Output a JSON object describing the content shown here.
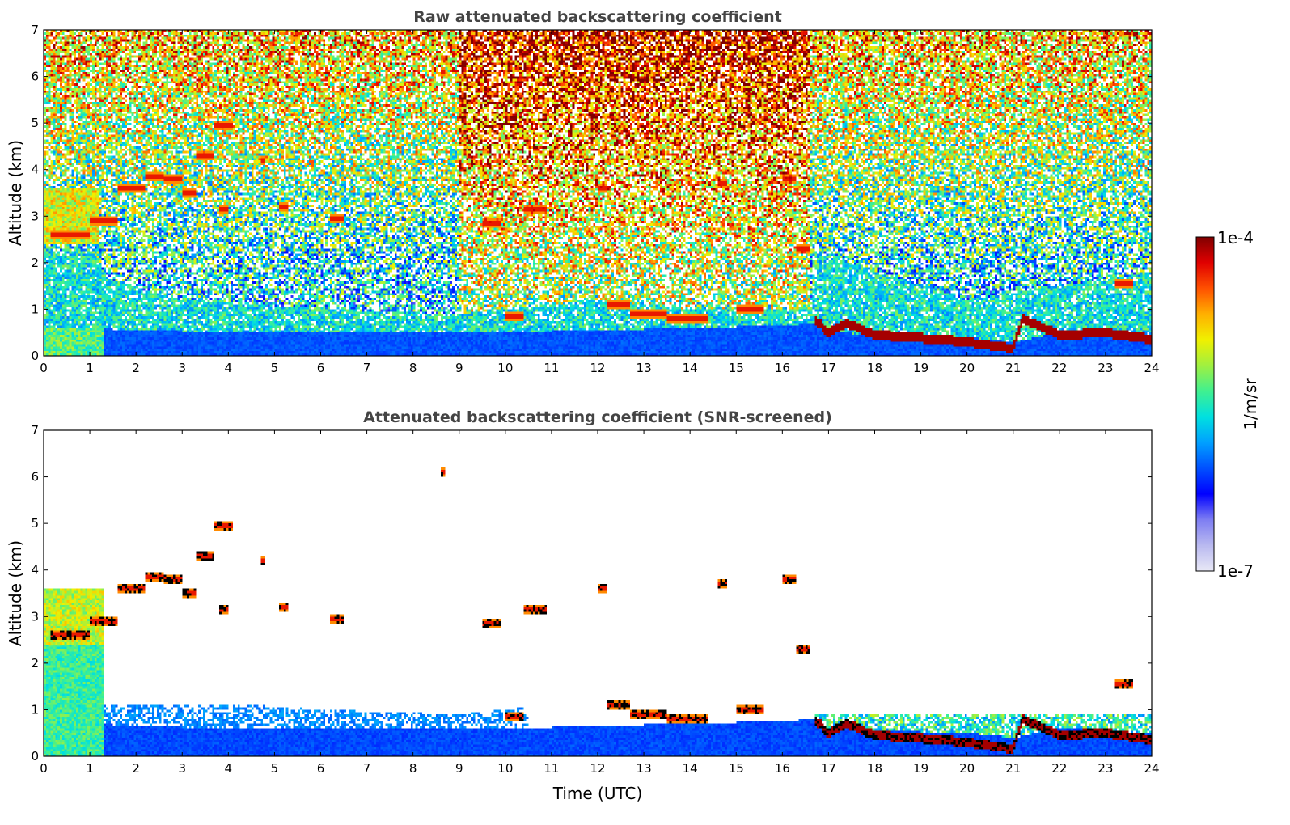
{
  "figure": {
    "xlabel": "Time (UTC)",
    "colorbar": {
      "label": "1/m/sr",
      "min_label": "1e-7",
      "max_label": "1e-4",
      "scale": "log",
      "range": [
        1e-07,
        0.0001
      ],
      "colormap": [
        "#e8e8f6",
        "#b9b9f0",
        "#7d7df2",
        "#0000ff",
        "#0050ff",
        "#00a0ff",
        "#00e0e0",
        "#40f090",
        "#a0f040",
        "#f0f000",
        "#ffb000",
        "#ff5000",
        "#e00000",
        "#800000"
      ]
    }
  },
  "chart_data": [
    {
      "type": "heatmap",
      "title": "Raw attenuated backscattering coefficient",
      "xlabel": "",
      "ylabel": "Altitude (km)",
      "xlim": [
        0,
        24
      ],
      "ylim": [
        0,
        7
      ],
      "x_ticks": [
        "0",
        "1",
        "2",
        "3",
        "4",
        "5",
        "6",
        "7",
        "8",
        "9",
        "10",
        "11",
        "12",
        "13",
        "14",
        "15",
        "16",
        "17",
        "18",
        "19",
        "20",
        "21",
        "22",
        "23",
        "24"
      ],
      "y_ticks": [
        "0",
        "1",
        "2",
        "3",
        "4",
        "5",
        "6",
        "7"
      ],
      "grid": false,
      "screened": false,
      "features": {
        "boundary_layer_top_km": [
          [
            0,
            0.6
          ],
          [
            1,
            0.6
          ],
          [
            2,
            0.55
          ],
          [
            4,
            0.5
          ],
          [
            6,
            0.5
          ],
          [
            8,
            0.5
          ],
          [
            10,
            0.5
          ],
          [
            12,
            0.55
          ],
          [
            14,
            0.6
          ],
          [
            16,
            0.65
          ],
          [
            16.7,
            0.7
          ],
          [
            17,
            0.5
          ],
          [
            18,
            0.45
          ],
          [
            20,
            0.4
          ],
          [
            21,
            0.3
          ],
          [
            22,
            0.5
          ],
          [
            24,
            0.4
          ]
        ],
        "residual_aerosol_top_km": [
          [
            0,
            2.3
          ],
          [
            1,
            2.2
          ],
          [
            1.5,
            1.6
          ],
          [
            3,
            1.2
          ],
          [
            6,
            1.0
          ],
          [
            9,
            0.9
          ],
          [
            12,
            1.2
          ],
          [
            14,
            1.0
          ],
          [
            16.6,
            1.0
          ],
          [
            16.8,
            2.2
          ],
          [
            20,
            1.2
          ],
          [
            24,
            1.8
          ]
        ],
        "low_cloud_layer_km": [
          [
            16.7,
            0.8
          ],
          [
            17,
            0.5
          ],
          [
            17.4,
            0.7
          ],
          [
            18,
            0.45
          ],
          [
            19,
            0.38
          ],
          [
            20,
            0.3
          ],
          [
            21,
            0.15
          ],
          [
            21.2,
            0.8
          ],
          [
            22,
            0.45
          ],
          [
            23,
            0.5
          ],
          [
            24,
            0.35
          ]
        ],
        "cloud_segments": [
          {
            "t0": 0.15,
            "t1": 1.0,
            "h": 2.6
          },
          {
            "t0": 1.0,
            "t1": 1.6,
            "h": 2.9
          },
          {
            "t0": 1.6,
            "t1": 2.2,
            "h": 3.6
          },
          {
            "t0": 2.2,
            "t1": 2.6,
            "h": 3.85
          },
          {
            "t0": 2.6,
            "t1": 3.0,
            "h": 3.8
          },
          {
            "t0": 3.0,
            "t1": 3.3,
            "h": 3.5
          },
          {
            "t0": 3.3,
            "t1": 3.7,
            "h": 4.3
          },
          {
            "t0": 3.7,
            "t1": 4.1,
            "h": 4.95
          },
          {
            "t0": 3.8,
            "t1": 4.0,
            "h": 3.15
          },
          {
            "t0": 4.7,
            "t1": 4.8,
            "h": 4.2
          },
          {
            "t0": 5.1,
            "t1": 5.3,
            "h": 3.2
          },
          {
            "t0": 6.2,
            "t1": 6.5,
            "h": 2.95
          },
          {
            "t0": 8.6,
            "t1": 8.7,
            "h": 6.1
          },
          {
            "t0": 9.5,
            "t1": 9.9,
            "h": 2.85
          },
          {
            "t0": 10.4,
            "t1": 10.9,
            "h": 3.15
          },
          {
            "t0": 10.0,
            "t1": 10.4,
            "h": 0.85
          },
          {
            "t0": 12.0,
            "t1": 12.2,
            "h": 3.6
          },
          {
            "t0": 12.2,
            "t1": 12.7,
            "h": 1.1
          },
          {
            "t0": 12.7,
            "t1": 13.5,
            "h": 0.9
          },
          {
            "t0": 13.5,
            "t1": 14.4,
            "h": 0.8
          },
          {
            "t0": 14.6,
            "t1": 14.8,
            "h": 3.7
          },
          {
            "t0": 15.0,
            "t1": 15.6,
            "h": 1.0
          },
          {
            "t0": 16.0,
            "t1": 16.3,
            "h": 3.8
          },
          {
            "t0": 16.3,
            "t1": 16.6,
            "h": 2.3
          },
          {
            "t0": 23.2,
            "t1": 23.6,
            "h": 1.55
          }
        ]
      }
    },
    {
      "type": "heatmap",
      "title": "Attenuated backscattering coefficient (SNR-screened)",
      "xlabel": "Time (UTC)",
      "ylabel": "Altitude (km)",
      "xlim": [
        0,
        24
      ],
      "ylim": [
        0,
        7
      ],
      "x_ticks": [
        "0",
        "1",
        "2",
        "3",
        "4",
        "5",
        "6",
        "7",
        "8",
        "9",
        "10",
        "11",
        "12",
        "13",
        "14",
        "15",
        "16",
        "17",
        "18",
        "19",
        "20",
        "21",
        "22",
        "23",
        "24"
      ],
      "y_ticks": [
        "0",
        "1",
        "2",
        "3",
        "4",
        "5",
        "6",
        "7"
      ],
      "grid": false,
      "screened": true
    }
  ]
}
